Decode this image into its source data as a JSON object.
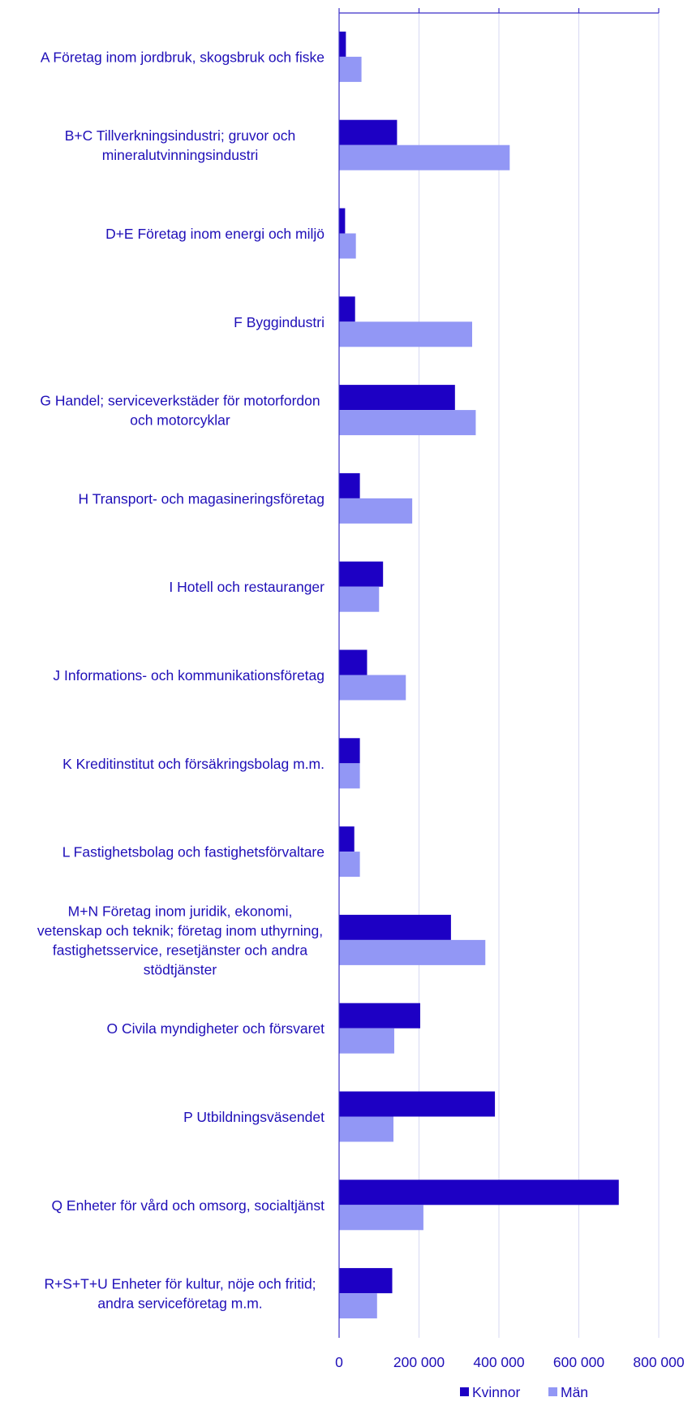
{
  "chart_data": {
    "type": "bar",
    "orientation": "horizontal",
    "categories": [
      [
        "A Företag inom jordbruk, skogsbruk och fiske"
      ],
      [
        "B+C Tillverkningsindustri; gruvor och",
        "mineralutvinningsindustri"
      ],
      [
        "D+E Företag inom energi och miljö"
      ],
      [
        "F Byggindustri"
      ],
      [
        "G Handel; serviceverkstäder för motorfordon",
        "och motorcyklar"
      ],
      [
        "H Transport- och magasineringsföretag"
      ],
      [
        "I Hotell och restauranger"
      ],
      [
        "J Informations- och kommunikationsföretag"
      ],
      [
        "K Kreditinstitut och försäkringsbolag m.m."
      ],
      [
        "L Fastighetsbolag och fastighetsförvaltare"
      ],
      [
        "M+N Företag inom juridik, ekonomi,",
        "vetenskap och teknik; företag inom uthyrning,",
        "fastighetsservice, resetjänster och andra",
        "stödtjänster"
      ],
      [
        "O Civila myndigheter och försvaret"
      ],
      [
        "P Utbildningsväsendet"
      ],
      [
        "Q Enheter för vård och omsorg, socialtjänst"
      ],
      [
        "R+S+T+U Enheter för kultur, nöje och fritid;",
        "andra serviceföretag m.m."
      ]
    ],
    "series": [
      {
        "name": "Kvinnor",
        "color": "#1d00c4",
        "values": [
          17000,
          145000,
          15000,
          40000,
          290000,
          52000,
          110000,
          70000,
          52000,
          38000,
          280000,
          203000,
          390000,
          700000,
          133000
        ]
      },
      {
        "name": "Män",
        "color": "#9297f5",
        "values": [
          56000,
          427000,
          42000,
          333000,
          342000,
          183000,
          100000,
          167000,
          52000,
          52000,
          366000,
          138000,
          136000,
          211000,
          95000
        ]
      }
    ],
    "x_ticks": [
      0,
      200000,
      400000,
      600000,
      800000
    ],
    "x_tick_labels": [
      "0",
      "200 000",
      "400 000",
      "600 000",
      "800 000"
    ],
    "xlim": [
      0,
      800000
    ],
    "grid": true,
    "legend_position": "bottom"
  }
}
